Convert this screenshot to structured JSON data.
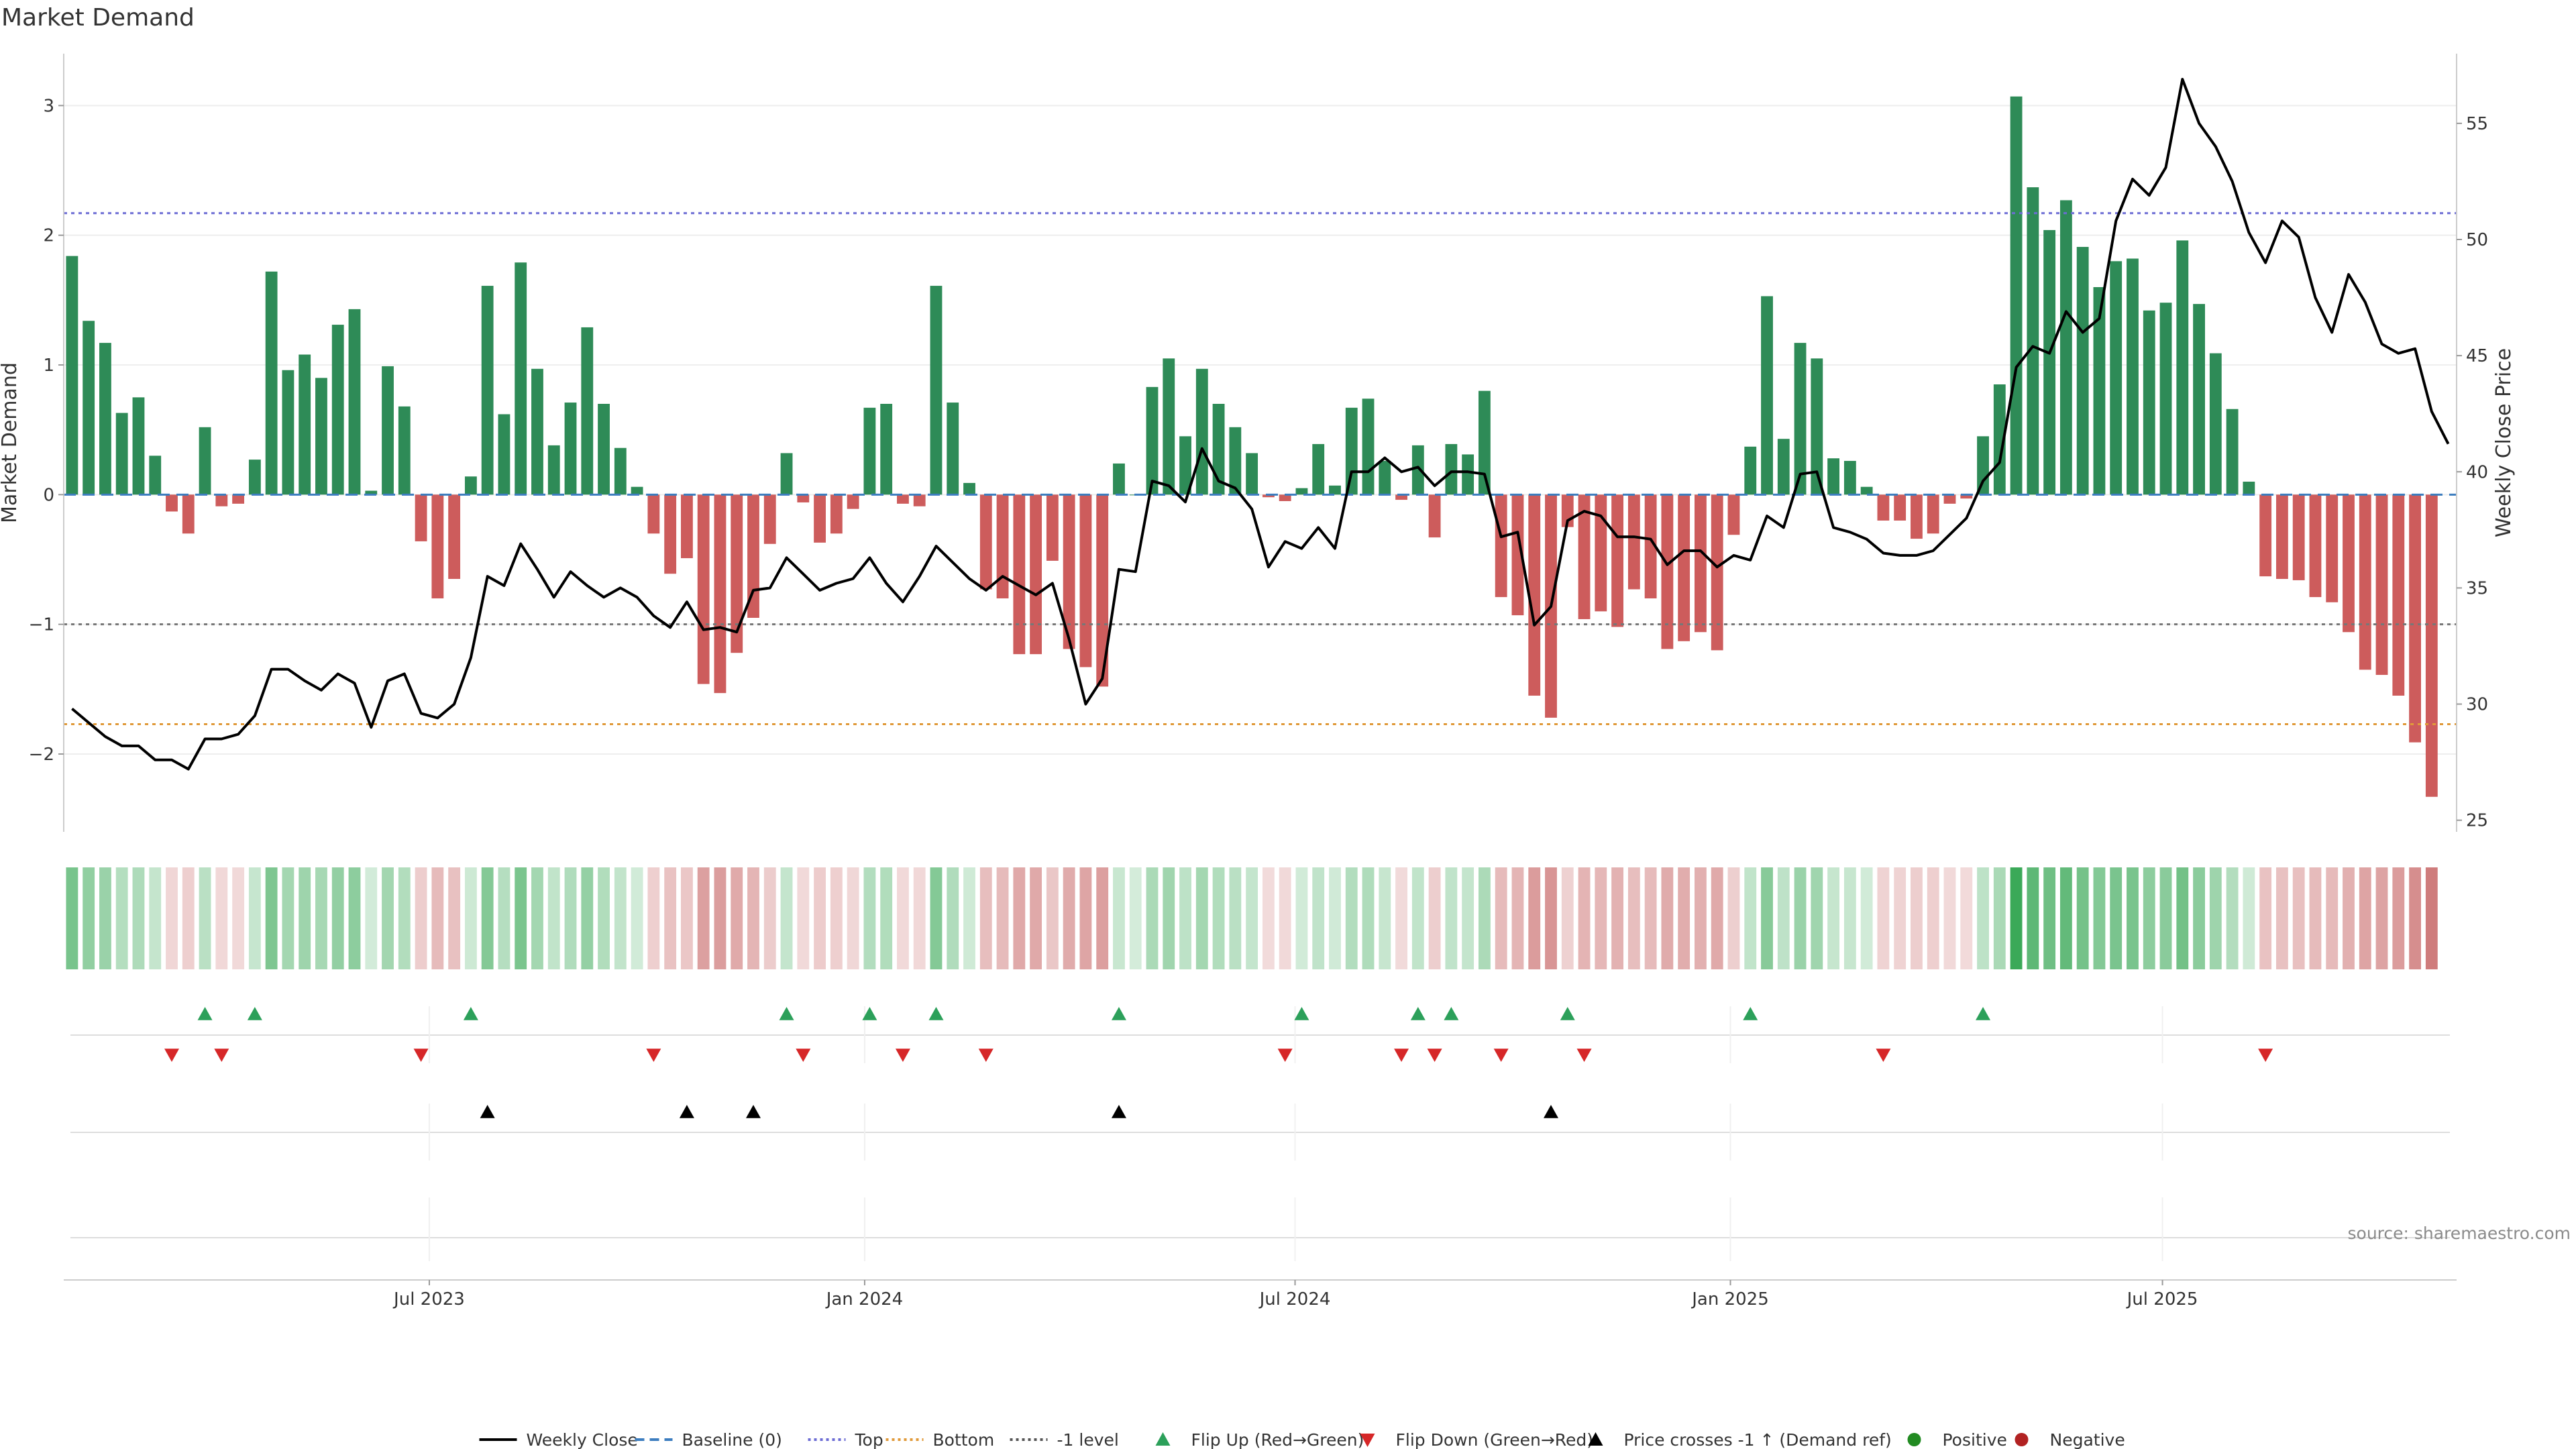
{
  "chart_data": {
    "type": "bar",
    "title": "Market Demand",
    "ylabel_left": "Market Demand",
    "ylabel_right": "Weekly Close Price",
    "y_left_ticks": [
      {
        "value": 3,
        "label": "3"
      },
      {
        "value": 2,
        "label": "2"
      },
      {
        "value": 1,
        "label": "1"
      },
      {
        "value": 0,
        "label": "0"
      },
      {
        "value": -1,
        "label": "−1"
      },
      {
        "value": -2,
        "label": "−2"
      }
    ],
    "y_right_ticks": [
      {
        "value": 55,
        "label": "55"
      },
      {
        "value": 50,
        "label": "50"
      },
      {
        "value": 45,
        "label": "45"
      },
      {
        "value": 40,
        "label": "40"
      },
      {
        "value": 35,
        "label": "35"
      },
      {
        "value": 30,
        "label": "30"
      },
      {
        "value": 25,
        "label": "25"
      }
    ],
    "x_ticks": [
      "Jul 2023",
      "Jan 2024",
      "Jul 2024",
      "Jan 2025",
      "Jul 2025"
    ],
    "x_tick_weeks": [
      21.5,
      47.7,
      73.6,
      99.8,
      125.8
    ],
    "ylim_left": [
      -2.6,
      3.4
    ],
    "ylim_right": [
      24.5,
      58
    ],
    "week_count": 144,
    "reference_lines": {
      "baseline": 0,
      "top": 2.17,
      "bottom": -1.77,
      "minus_one_level": -1
    },
    "demand": [
      1.84,
      1.34,
      1.17,
      0.63,
      0.75,
      0.3,
      -0.13,
      -0.3,
      0.52,
      -0.09,
      -0.07,
      0.27,
      1.72,
      0.96,
      1.08,
      0.9,
      1.31,
      1.43,
      0.03,
      0.99,
      0.68,
      -0.36,
      -0.8,
      -0.65,
      0.14,
      1.61,
      0.62,
      1.79,
      0.97,
      0.38,
      0.71,
      1.29,
      0.7,
      0.36,
      0.06,
      -0.3,
      -0.61,
      -0.49,
      -1.46,
      -1.53,
      -1.22,
      -0.95,
      -0.38,
      0.32,
      -0.06,
      -0.37,
      -0.3,
      -0.11,
      0.67,
      0.7,
      -0.07,
      -0.09,
      1.61,
      0.71,
      0.09,
      -0.73,
      -0.8,
      -1.23,
      -1.23,
      -0.51,
      -1.19,
      -1.33,
      -1.48,
      0.24,
      0.0,
      0.83,
      1.05,
      0.45,
      0.97,
      0.7,
      0.52,
      0.32,
      -0.02,
      -0.05,
      0.05,
      0.39,
      0.07,
      0.67,
      0.74,
      0.26,
      -0.04,
      0.38,
      -0.33,
      0.39,
      0.31,
      0.8,
      -0.79,
      -0.93,
      -1.55,
      -1.72,
      -0.25,
      -0.96,
      -0.9,
      -1.02,
      -0.73,
      -0.8,
      -1.19,
      -1.13,
      -1.06,
      -1.2,
      -0.31,
      0.37,
      1.53,
      0.43,
      1.17,
      1.05,
      0.28,
      0.26,
      0.06,
      -0.2,
      -0.2,
      -0.34,
      -0.3,
      -0.07,
      -0.03,
      0.45,
      0.85,
      3.07,
      2.37,
      2.04,
      2.27,
      1.91,
      1.6,
      1.8,
      1.82,
      1.42,
      1.48,
      1.96,
      1.47,
      1.09,
      0.66,
      0.1,
      -0.63,
      -0.65,
      -0.66,
      -0.79,
      -0.83,
      -1.06,
      -1.35,
      -1.39,
      -1.55,
      -1.91,
      -2.33
    ],
    "price": [
      29.8,
      29.2,
      28.6,
      28.2,
      28.2,
      27.6,
      27.6,
      27.2,
      28.5,
      28.5,
      28.7,
      29.5,
      31.5,
      31.5,
      31.0,
      30.6,
      31.3,
      30.9,
      29.0,
      31.0,
      31.3,
      29.6,
      29.4,
      30.0,
      32.0,
      35.5,
      35.1,
      36.9,
      35.8,
      34.6,
      35.7,
      35.1,
      34.6,
      35.0,
      34.6,
      33.8,
      33.3,
      34.4,
      33.2,
      33.3,
      33.1,
      34.9,
      35.0,
      36.3,
      35.6,
      34.9,
      35.2,
      35.4,
      36.3,
      35.2,
      34.4,
      35.5,
      36.8,
      36.1,
      35.4,
      34.9,
      35.5,
      35.1,
      34.7,
      35.2,
      32.8,
      30.0,
      31.1,
      35.8,
      35.7,
      39.6,
      39.4,
      38.7,
      41.0,
      39.6,
      39.3,
      38.4,
      35.9,
      37.0,
      36.7,
      37.6,
      36.7,
      40.0,
      40.0,
      40.6,
      40.0,
      40.2,
      39.4,
      40.0,
      40.0,
      39.9,
      37.2,
      37.4,
      33.4,
      34.2,
      37.9,
      38.3,
      38.1,
      37.2,
      37.2,
      37.1,
      36.0,
      36.6,
      36.6,
      35.9,
      36.4,
      36.2,
      38.1,
      37.6,
      39.9,
      40.0,
      37.6,
      37.4,
      37.1,
      36.5,
      36.4,
      36.4,
      36.6,
      37.3,
      38.0,
      39.6,
      40.4,
      44.5,
      45.4,
      45.1,
      46.9,
      46.0,
      46.6,
      50.8,
      52.6,
      51.9,
      53.1,
      56.9,
      55.0,
      54.0,
      52.5,
      50.3,
      49.0,
      50.8,
      50.1,
      47.5,
      46.0,
      48.5,
      47.3,
      45.5,
      45.1,
      45.3,
      42.6,
      41.2
    ],
    "flip_up_weeks": [
      8,
      11,
      24,
      43,
      48,
      52,
      63,
      74,
      81,
      83,
      90,
      101,
      115
    ],
    "flip_down_weeks": [
      6,
      9,
      21,
      35,
      44,
      50,
      55,
      73,
      80,
      82,
      86,
      91,
      109,
      132
    ],
    "price_cross_weeks": [
      25,
      37,
      41,
      63,
      89
    ],
    "strip": {
      "positive_color": "#3aa857",
      "negative_color": "#c45d5d"
    },
    "colors": {
      "positive_bar": "#2e8b57",
      "negative_bar": "#cd5c5c",
      "price_line": "#000000",
      "baseline": "#3c7dbf",
      "top": "#6c6cd4",
      "bottom": "#e09a3a",
      "minus_one": "#777777",
      "flip_up": "#2ca05a",
      "flip_down": "#d62728",
      "price_cross": "#000000",
      "positive_dot": "#228b22",
      "negative_dot": "#b22222"
    },
    "legend": [
      {
        "label": "Weekly Close",
        "kind": "line",
        "color": "#000000"
      },
      {
        "label": "Baseline (0)",
        "kind": "dash",
        "color": "#3c7dbf"
      },
      {
        "label": "Top",
        "kind": "dot",
        "color": "#6c6cd4"
      },
      {
        "label": "Bottom",
        "kind": "dot",
        "color": "#e09a3a"
      },
      {
        "label": "-1 level",
        "kind": "dot",
        "color": "#555555"
      },
      {
        "label": "Flip Up (Red→Green)",
        "kind": "tri-up",
        "color": "#2ca05a"
      },
      {
        "label": "Flip Down (Green→Red)",
        "kind": "tri-down",
        "color": "#d62728"
      },
      {
        "label": "Price crosses -1 ↑ (Demand ref)",
        "kind": "tri-up",
        "color": "#000000"
      },
      {
        "label": "Positive",
        "kind": "circle",
        "color": "#228b22"
      },
      {
        "label": "Negative",
        "kind": "circle",
        "color": "#b22222"
      }
    ],
    "source": "source: sharemaestro.com",
    "legend_placement": "bottom-center",
    "grid": true
  }
}
